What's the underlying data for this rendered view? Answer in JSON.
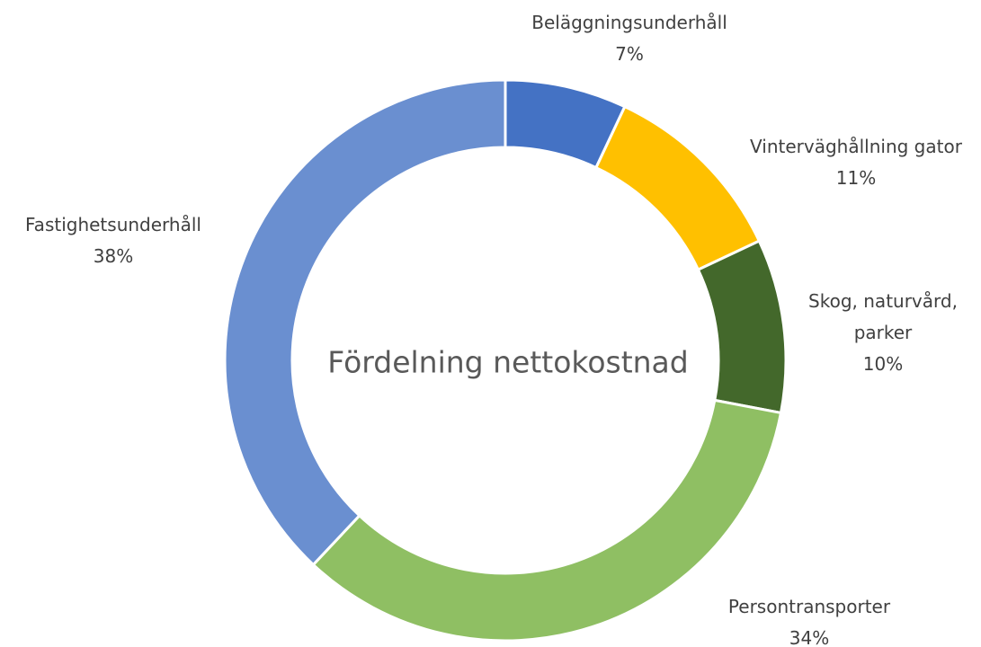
{
  "chart_data": {
    "type": "donut",
    "title": "Fördelning nettokostnad",
    "categories": [
      "Beläggningsunderhåll",
      "Vinterväghållning gator",
      "Skog, naturvård, parker",
      "Persontransporter",
      "Fastighetsunderhåll"
    ],
    "values": [
      7,
      11,
      10,
      34,
      38
    ],
    "value_labels": [
      "7%",
      "11%",
      "10%",
      "34%",
      "38%"
    ],
    "colors": [
      "#4472c4",
      "#ffc000",
      "#43682b",
      "#8fbf63",
      "#6a8fd0"
    ]
  }
}
